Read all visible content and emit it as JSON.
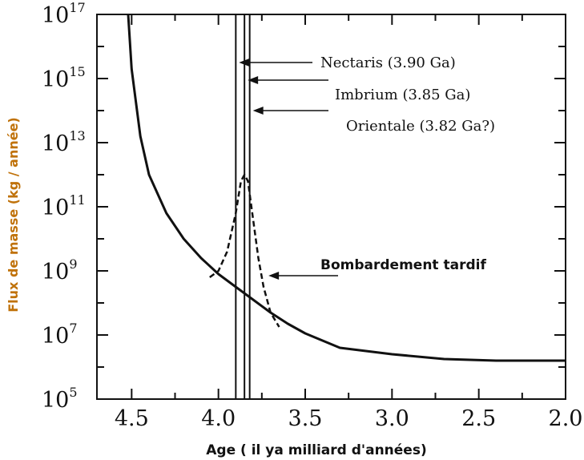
{
  "chart_data": {
    "type": "line",
    "xlabel": "Age ( il ya  milliard d'années)",
    "ylabel": "Flux de masse (kg / année)",
    "x_ticks": [
      "4.5",
      "4.0",
      "3.5",
      "3.0",
      "2.5",
      "2.0"
    ],
    "x_tick_values": [
      4.5,
      4.0,
      3.5,
      3.0,
      2.5,
      2.0
    ],
    "y_ticks": [
      {
        "base": "10",
        "exp": "5",
        "value": 5
      },
      {
        "base": "10",
        "exp": "7",
        "value": 7
      },
      {
        "base": "10",
        "exp": "9",
        "value": 9
      },
      {
        "base": "10",
        "exp": "11",
        "value": 11
      },
      {
        "base": "10",
        "exp": "13",
        "value": 13
      },
      {
        "base": "10",
        "exp": "15",
        "value": 15
      },
      {
        "base": "10",
        "exp": "17",
        "value": 17
      }
    ],
    "xlim": [
      4.7,
      2.0
    ],
    "ylim_log10": [
      5,
      17
    ],
    "y_scale": "log",
    "x_inverted": true,
    "series": [
      {
        "style": "solid",
        "x": [
          4.52,
          4.5,
          4.45,
          4.4,
          4.3,
          4.2,
          4.1,
          4.0,
          3.9,
          3.8,
          3.7,
          3.6,
          3.5,
          3.3,
          3.0,
          2.7,
          2.4,
          2.0
        ],
        "log10_y": [
          17.0,
          15.3,
          13.2,
          12.0,
          10.8,
          10.0,
          9.4,
          8.9,
          8.5,
          8.1,
          7.7,
          7.35,
          7.05,
          6.6,
          6.4,
          6.25,
          6.2,
          6.2
        ]
      },
      {
        "style": "dashed",
        "x": [
          4.05,
          4.0,
          3.95,
          3.9,
          3.87,
          3.85,
          3.83,
          3.8,
          3.77,
          3.74,
          3.7,
          3.65
        ],
        "log10_y": [
          8.8,
          9.0,
          9.6,
          10.8,
          11.8,
          12.0,
          11.8,
          10.6,
          9.4,
          8.5,
          7.7,
          7.25
        ]
      }
    ],
    "vertical_lines": [
      3.9,
      3.85,
      3.82
    ],
    "annotations": [
      {
        "text": "Nectaris (3.90 Ga)",
        "point_x": 3.9,
        "log10_y": 15.5
      },
      {
        "text": "Imbrium (3.85 Ga)",
        "point_x": 3.85,
        "log10_y": 14.95
      },
      {
        "text": "Orientale (3.82 Ga?)",
        "point_x": 3.82,
        "log10_y": 14.0
      },
      {
        "text": "Bombardement tardif",
        "point_x": 3.73,
        "log10_y": 8.85,
        "bold": true
      }
    ],
    "grid": false
  }
}
